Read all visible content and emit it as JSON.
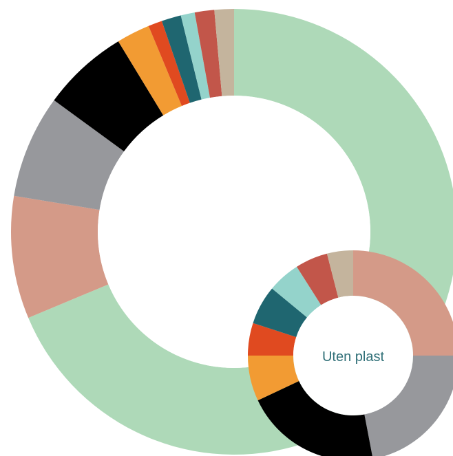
{
  "chart_data": [
    {
      "type": "donut",
      "title": "",
      "center_label": "",
      "slices": [
        {
          "value": 68.0,
          "color": "#aed9b8"
        },
        {
          "value": 8.8,
          "color": "#d49a88"
        },
        {
          "value": 7.4,
          "color": "#97989c"
        },
        {
          "value": 6.2,
          "color": "#000000"
        },
        {
          "value": 2.4,
          "color": "#f29b33"
        },
        {
          "value": 1.0,
          "color": "#e04a20"
        },
        {
          "value": 1.4,
          "color": "#1f6670"
        },
        {
          "value": 1.0,
          "color": "#94d3cb"
        },
        {
          "value": 1.4,
          "color": "#c2564a"
        },
        {
          "value": 1.4,
          "color": "#c4b49d"
        }
      ]
    },
    {
      "type": "donut",
      "title": "",
      "center_label": "Uten plast",
      "slices": [
        {
          "value": 25.0,
          "color": "#d49a88"
        },
        {
          "value": 22.0,
          "color": "#97989c"
        },
        {
          "value": 21.0,
          "color": "#000000"
        },
        {
          "value": 7.0,
          "color": "#f29b33"
        },
        {
          "value": 5.0,
          "color": "#e04a20"
        },
        {
          "value": 6.0,
          "color": "#1f6670"
        },
        {
          "value": 5.0,
          "color": "#94d3cb"
        },
        {
          "value": 5.0,
          "color": "#c2564a"
        },
        {
          "value": 4.0,
          "color": "#c4b49d"
        }
      ]
    }
  ]
}
